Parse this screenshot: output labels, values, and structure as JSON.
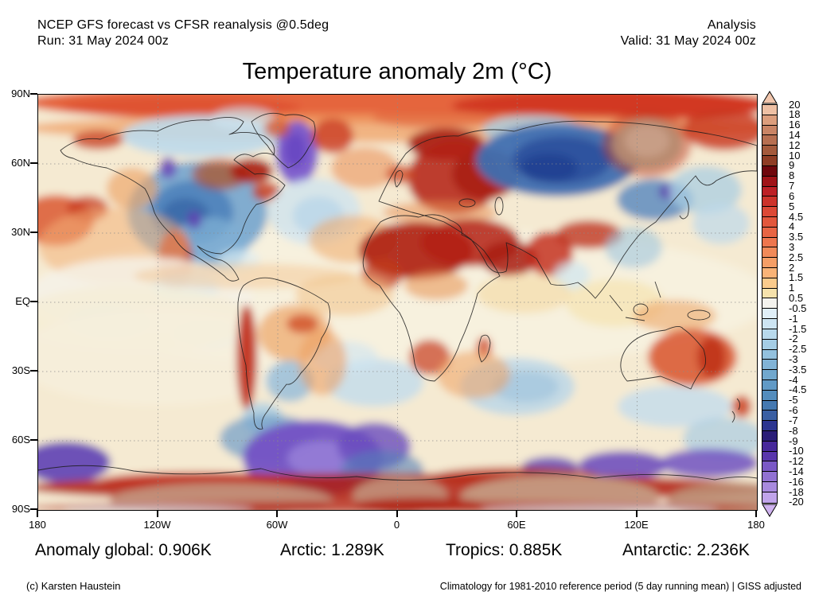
{
  "header": {
    "model_line": "NCEP GFS forecast vs CFSR reanalysis @0.5deg",
    "run_line": "Run: 31 May 2024 00z",
    "mode": "Analysis",
    "valid_line": "Valid: 31 May 2024 00z"
  },
  "title": "Temperature anomaly 2m (°C)",
  "map": {
    "lat_labels": [
      "90N",
      "60N",
      "30N",
      "EQ",
      "30S",
      "60S",
      "90S"
    ],
    "lon_labels": [
      "180",
      "120W",
      "60W",
      "0",
      "60E",
      "120E",
      "180"
    ]
  },
  "colorbar": {
    "unit": "°C",
    "labels": [
      "20",
      "18",
      "16",
      "14",
      "12",
      "10",
      "9",
      "8",
      "7",
      "6",
      "5",
      "4.5",
      "4",
      "3.5",
      "3",
      "2.5",
      "2",
      "1.5",
      "1",
      "0.5",
      "-0.5",
      "-1",
      "-1.5",
      "-2",
      "-2.5",
      "-3",
      "-3.5",
      "-4",
      "-4.5",
      "-5",
      "-6",
      "-7",
      "-8",
      "-9",
      "-10",
      "-12",
      "-14",
      "-16",
      "-18",
      "-20"
    ],
    "segment_colors": [
      "#eec0a4",
      "#dc9e7d",
      "#c98465",
      "#b76f51",
      "#a45a3c",
      "#8f3d25",
      "#6f070d",
      "#a01318",
      "#bd2026",
      "#cd332b",
      "#dc4936",
      "#e2573c",
      "#e86544",
      "#ee764e",
      "#f18a59",
      "#f59e66",
      "#f9b377",
      "#fbcb8c",
      "#f6e2ac",
      "#f4f3ee",
      "#e0eff8",
      "#cde5f3",
      "#b8d9ec",
      "#a5cde5",
      "#93c1de",
      "#81b3d6",
      "#71a8ce",
      "#619ac6",
      "#548dbd",
      "#4579b1",
      "#3a5fa3",
      "#2c3590",
      "#2a1d78",
      "#47289a",
      "#5936ac",
      "#7a58c6",
      "#9171d2",
      "#a88ade",
      "#c0a4ea"
    ],
    "over_color": "#f1c6ad",
    "under_color": "#cfb2ef"
  },
  "stats": {
    "items": [
      "Anomaly global: 0.906K",
      "Arctic: 1.289K",
      "Tropics: 0.885K",
      "Antarctic: 2.236K"
    ]
  },
  "footer": {
    "credit": "(c) Karsten Haustein",
    "climatology": "Climatology for 1981-2010 reference period (5 day running mean) | GISS adjusted"
  },
  "chart_data": {
    "type": "heatmap",
    "title": "Temperature anomaly 2m (°C)",
    "projection": "equirectangular world map",
    "x_ticks": [
      "180",
      "120W",
      "60W",
      "0",
      "60E",
      "120E",
      "180"
    ],
    "y_ticks": [
      "90N",
      "60N",
      "30N",
      "EQ",
      "30S",
      "60S",
      "90S"
    ],
    "colorbar_values": [
      20,
      18,
      16,
      14,
      12,
      10,
      9,
      8,
      7,
      6,
      5,
      4.5,
      4,
      3.5,
      3,
      2.5,
      2,
      1.5,
      1,
      0.5,
      -0.5,
      -1,
      -1.5,
      -2,
      -2.5,
      -3,
      -3.5,
      -4,
      -4.5,
      -5,
      -6,
      -7,
      -8,
      -9,
      -10,
      -12,
      -14,
      -16,
      -18,
      -20
    ],
    "colorbar_range_C": [
      -20,
      20
    ],
    "regional_mean_anomalies_K": {
      "global": 0.906,
      "arctic": 1.289,
      "tropics": 0.885,
      "antarctic": 2.236
    }
  }
}
